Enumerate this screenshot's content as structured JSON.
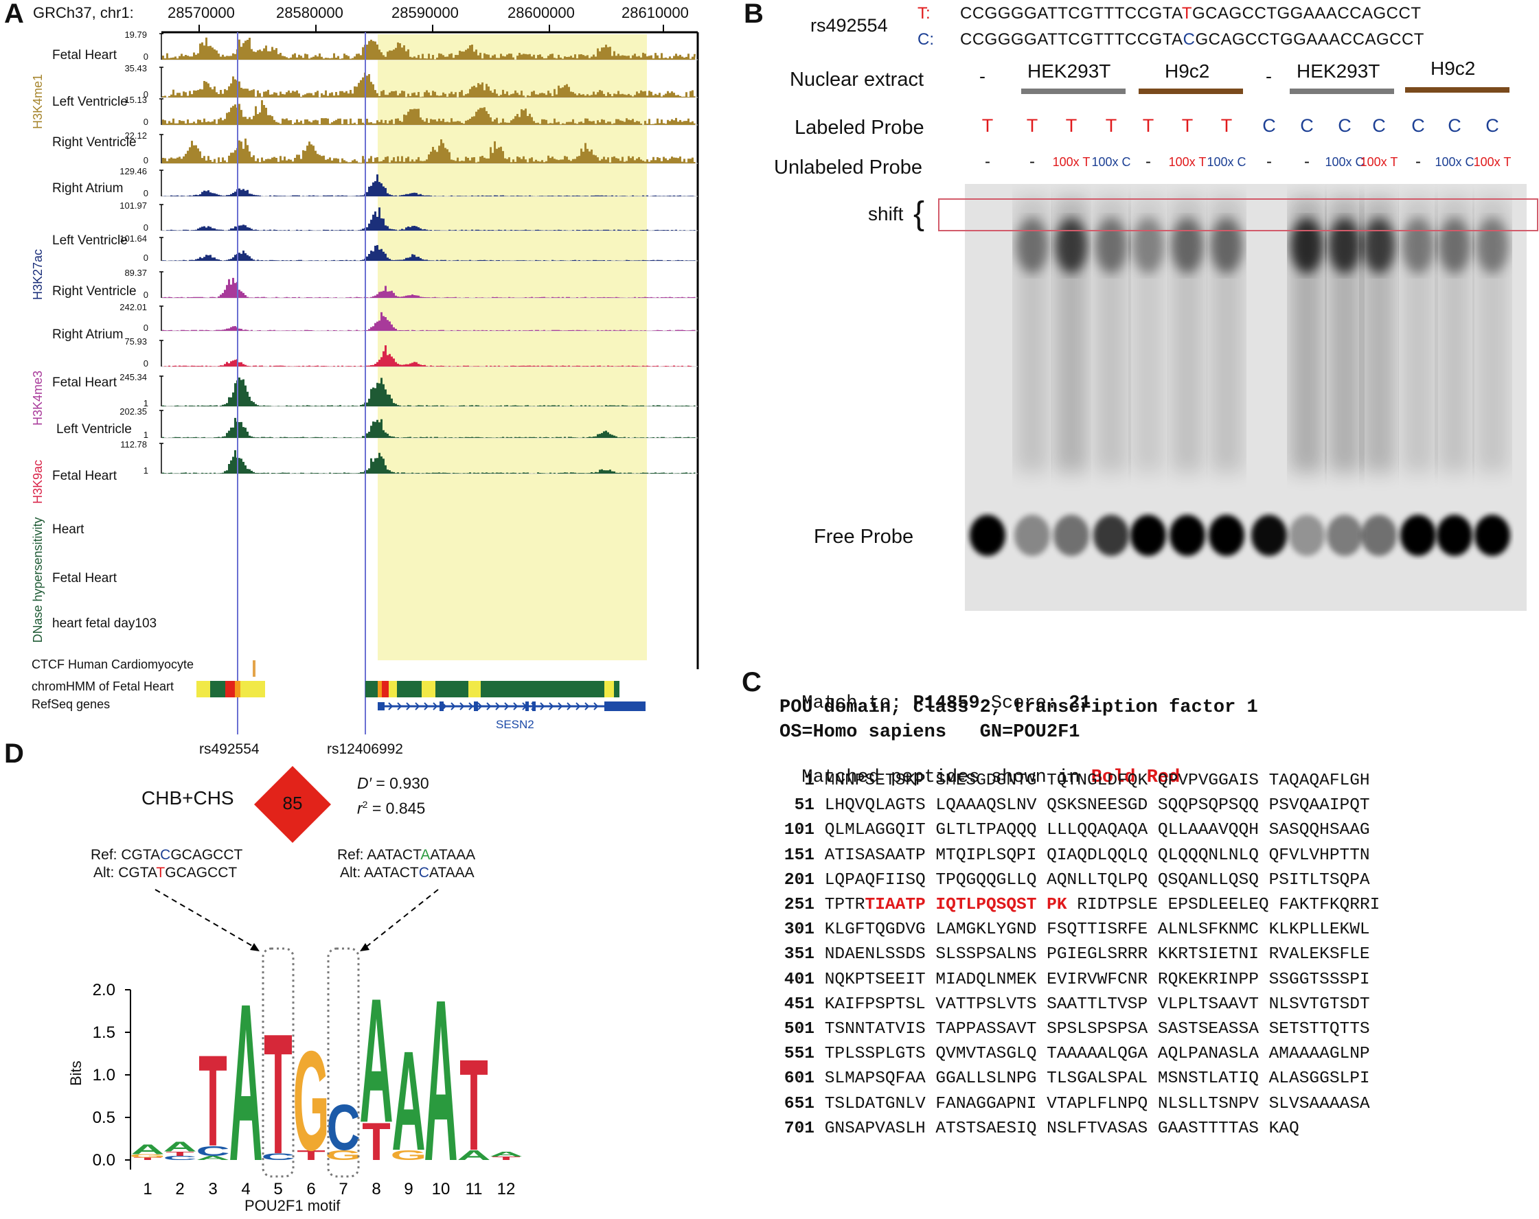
{
  "panels": {
    "a": "A",
    "b": "B",
    "c": "C",
    "d": "D"
  },
  "panelA": {
    "coord_label": "GRCh37, chr1:",
    "ruler_ticks": [
      "28570000",
      "28580000",
      "28590000",
      "28600000",
      "28610000"
    ],
    "groups": {
      "h3k4me1": "H3K4me1",
      "h3k27ac": "H3K27ac",
      "h3k4me3": "H3K4me3",
      "h3k9ac": "H3K9ac",
      "dnase": "DNase hypersensitivity"
    },
    "tracks": [
      {
        "name": "Fetal Heart",
        "max": "19.79",
        "min": "0"
      },
      {
        "name": "Left Ventricle",
        "max": "35.43",
        "min": "0"
      },
      {
        "name": "Right Ventricle",
        "max": "15.13",
        "min": "0"
      },
      {
        "name": "Right Atrium",
        "max": "22.12",
        "min": "0"
      },
      {
        "name": "Left Ventricle",
        "max": "129.46",
        "min": "0"
      },
      {
        "name": "Right Ventricle",
        "max": "101.97",
        "min": "0"
      },
      {
        "name": "Right Atrium",
        "max": "101.64",
        "min": "0"
      },
      {
        "name": "Fetal Heart",
        "max": "89.37",
        "min": "0"
      },
      {
        "name": "Left Ventricle",
        "max": "242.01",
        "min": "0"
      },
      {
        "name": "Fetal Heart",
        "max": "75.93",
        "min": "0"
      },
      {
        "name": "Heart",
        "max": "245.34",
        "min": "1"
      },
      {
        "name": "Fetal Heart",
        "max": "202.35",
        "min": "1"
      },
      {
        "name": "heart fetal day103",
        "max": "112.78",
        "min": "1"
      }
    ],
    "annot_tracks": [
      "CTCF Human Cardiomyocyte",
      "chromHMM of Fetal Heart",
      "RefSeq genes"
    ],
    "gene": "SESN2",
    "snps": [
      "rs492554",
      "rs12406992"
    ],
    "colors": {
      "h3k4me1": "#a6852e",
      "h3k27ac": "#1b2f7a",
      "h3k4me3": "#a83a9a",
      "h3k9ac": "#d9254a",
      "dnase": "#1e5a34",
      "highlight": "#f8f6bf"
    }
  },
  "panelB": {
    "snp": "rs492554",
    "allele_t": "T:",
    "allele_c": "C:",
    "seq_t": [
      "CCGGGGATTCGTTTCCGTA",
      "T",
      "GCAGCCTGGAAACCAGCCT"
    ],
    "seq_c": [
      "CCGGGGATTCGTTTCCGTA",
      "C",
      "GCAGCCTGGAAACCAGCCT"
    ],
    "row_labels": {
      "extract": "Nuclear extract",
      "labeled": "Labeled Probe",
      "unlabeled": "Unlabeled Probe"
    },
    "extracts": [
      "-",
      "HEK293T",
      "H9c2",
      "-",
      "HEK293T",
      "H9c2"
    ],
    "labeled": [
      "T",
      "T",
      "T",
      "T",
      "T",
      "T",
      "T",
      "C",
      "C",
      "C",
      "C",
      "C",
      "C",
      "C"
    ],
    "unlabeled": [
      "-",
      "-",
      "100x T",
      "100x C",
      "-",
      "100x T",
      "100x C",
      "-",
      "-",
      "100x C",
      "100x T",
      "-",
      "100x C",
      "100x T"
    ],
    "shift_label": "shift",
    "brace": "{",
    "free_label": "Free Probe"
  },
  "panelC": {
    "match_label": "Match to:",
    "accession": "P14859",
    "score_label": "Score:",
    "score": "21",
    "protein_name": "POU domain, class 2, transcription factor 1",
    "organism": "OS=Homo sapiens   GN=POU2F1",
    "matched_text": "Matched peptides shown in ",
    "matched_hl": "Bold Red",
    "rows": [
      {
        "n": "1",
        "s": "MNNPSETSKP SMESGDGNTG TQTNGLDFQK QPVPVGGAIS TAQAQAFLGH"
      },
      {
        "n": "51",
        "s": "LHQVQLAGTS LQAAAQSLNV QSKSNEESGD SQQPSQPSQQ PSVQAAIPQT"
      },
      {
        "n": "101",
        "s": "QLMLAGGQIT GLTLTPAQQQ LLLQQAQAQA QLLAAAVQQH SASQQHSAAG"
      },
      {
        "n": "151",
        "s": "ATISASAATP MTQIPLSQPI QIAQDLQQLQ QLQQQNLNLQ QFVLVHPTTN"
      },
      {
        "n": "201",
        "s": "LQPAQFIISQ TPQGQQGLLQ AQNLLTQLPQ QSQANLLQSQ PSITLTSQPA"
      },
      {
        "n": "251",
        "pre": "TPTR",
        "hl": "TIAATP IQTLPQSQST PK",
        "post": "RIDTPSLE EPSDLEELEQ FAKTFKQRRI"
      },
      {
        "n": "301",
        "s": "KLGFTQGDVG LAMGKLYGND FSQTTISRFE ALNLSFKNMC KLKPLLEKWL"
      },
      {
        "n": "351",
        "s": "NDAENLSSDS SLSSPSALNS PGIEGLSRRR KKRTSIETNI RVALEKSFLE"
      },
      {
        "n": "401",
        "s": "NQKPTSEEIT MIADQLNMEK EVIRVWFCNR RQKEKRINPP SSGGTSSSPI"
      },
      {
        "n": "451",
        "s": "KAIFPSPTSL VATTPSLVTS SAATTLTVSP VLPLTSAAVT NLSVTGTSDT"
      },
      {
        "n": "501",
        "s": "TSNNTATVIS TAPPASSAVT SPSLSPSPSA SASTSEASSA SETSTTQTTS"
      },
      {
        "n": "551",
        "s": "TPLSSPLGTS QVMVTASGLQ TAAAAALQGA AQLPANASLA AMAAAAGLNP"
      },
      {
        "n": "601",
        "s": "SLMAPSQFAA GGALLSLNPG TLSGALSPAL MSNSTLATIQ ALASGGSLPI"
      },
      {
        "n": "651",
        "s": "TSLDATGNLV FANAGGAPNI VTAPLFLNPQ NLSLLTSNPV SLVSAAAASA"
      },
      {
        "n": "701",
        "s": "GNSAPVASLH ATSTSAESIQ NSLFTVASAS GAASTTTTAS KAQ"
      }
    ]
  },
  "panelD": {
    "population": "CHB+CHS",
    "ld_value": "85",
    "dprime_label": "D′",
    "dprime_value": " = 0.930",
    "r2_label": "r",
    "r2_sup": "2",
    "r2_value": " = 0.845",
    "left_ref": {
      "label": "Ref:",
      "pre": "CGTA",
      "mid": "C",
      "post": "GCAGCCT"
    },
    "left_alt": {
      "label": "Alt:",
      "pre": "CGTA",
      "mid": "T",
      "post": "GCAGCCT"
    },
    "right_ref": {
      "label": "Ref:",
      "pre": "AATACT",
      "mid": "A",
      "post": "ATAAA"
    },
    "right_alt": {
      "label": "Alt:",
      "pre": "AATACT",
      "mid": "C",
      "post": "ATAAA"
    },
    "y_label": "Bits",
    "y_ticks": [
      "2.0",
      "1.5",
      "1.0",
      "0.5",
      "0.0"
    ],
    "x_ticks": [
      "1",
      "2",
      "3",
      "4",
      "5",
      "6",
      "7",
      "8",
      "9",
      "10",
      "11",
      "12"
    ],
    "motif_label": "POU2F1 motif"
  }
}
